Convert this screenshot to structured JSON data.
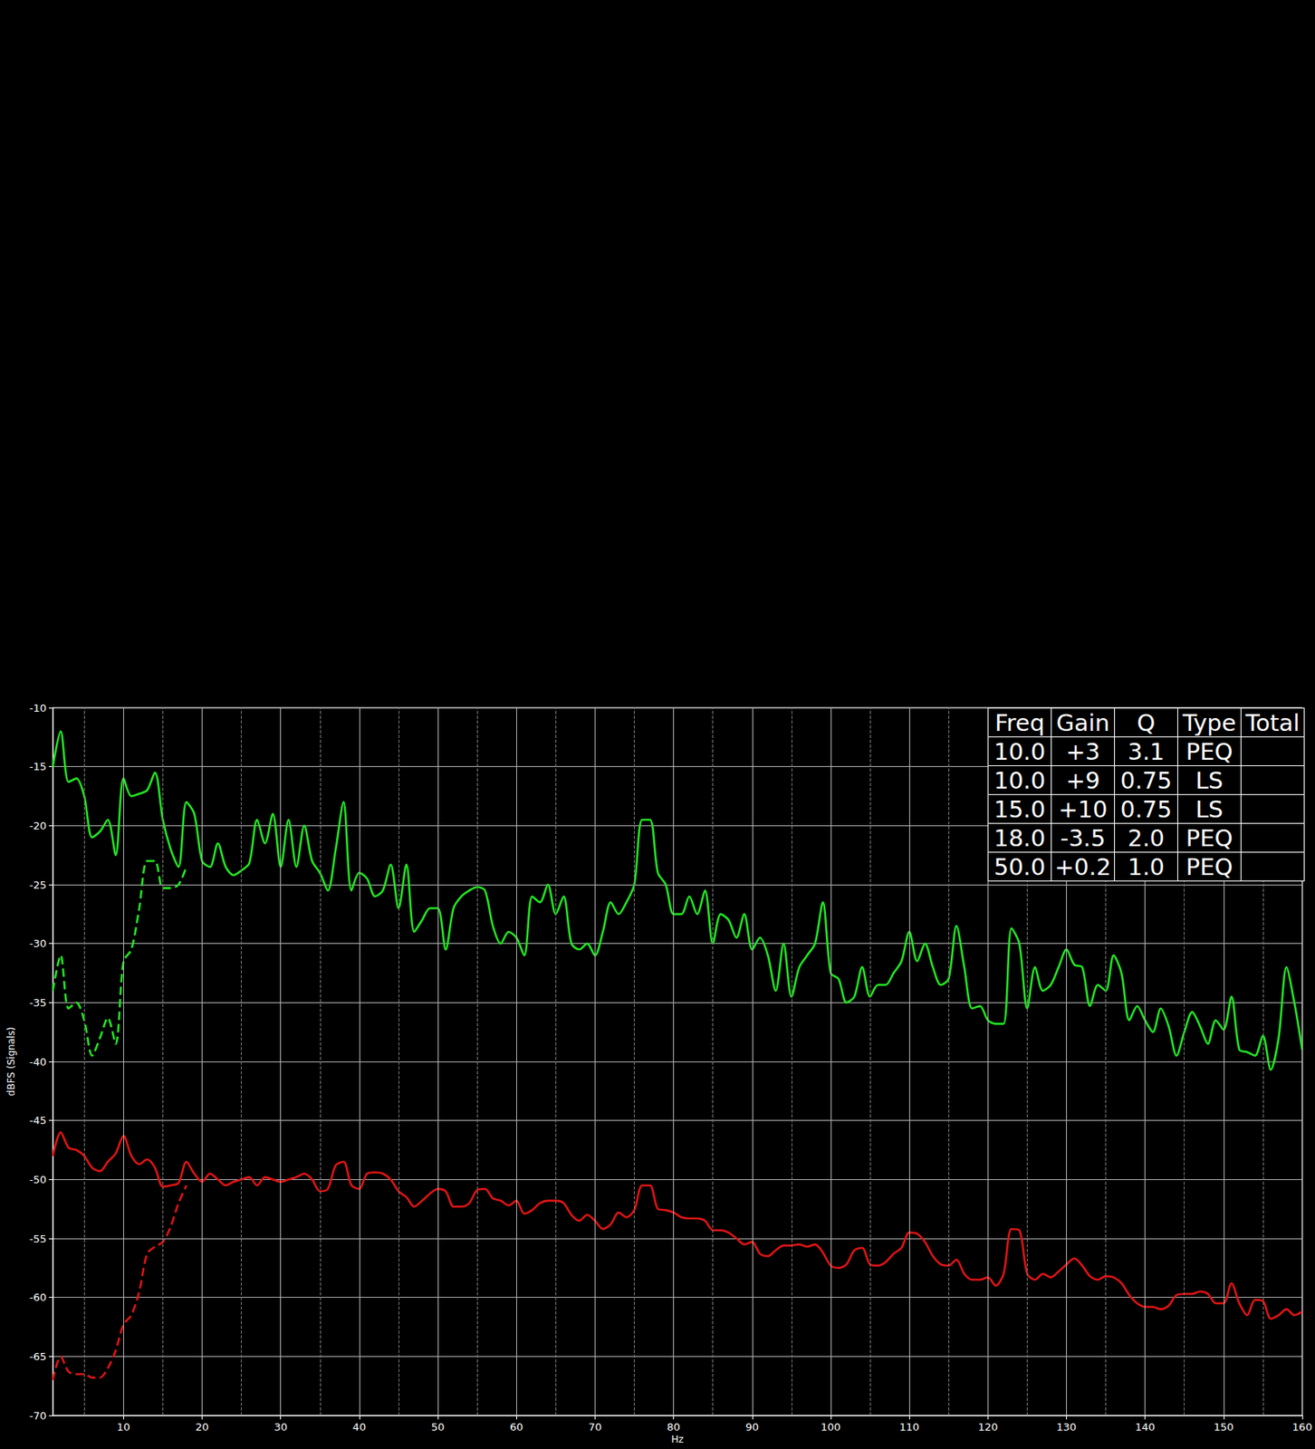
{
  "chart_data": {
    "type": "line",
    "x_label": "Hz",
    "y_label": "dBFS (Signals)",
    "xlim": [
      1,
      160
    ],
    "xticks": [
      10,
      20,
      30,
      40,
      50,
      60,
      70,
      80,
      90,
      100,
      110,
      120,
      130,
      140,
      150,
      160
    ],
    "ylim": [
      -70,
      -10
    ],
    "yticks": [
      -70,
      -65,
      -60,
      -55,
      -50,
      -45,
      -40,
      -35,
      -30,
      -25,
      -20,
      -15,
      -10
    ],
    "grid": true,
    "x": [
      1,
      2,
      3,
      4,
      5,
      6,
      7,
      8,
      9,
      10,
      11,
      12,
      13,
      14,
      15,
      16,
      17,
      18,
      19,
      20,
      21,
      22,
      23,
      24,
      25,
      26,
      27,
      28,
      29,
      30,
      31,
      32,
      33,
      34,
      35,
      36,
      37,
      38,
      39,
      40,
      41,
      42,
      43,
      44,
      45,
      46,
      47,
      48,
      49,
      50,
      51,
      52,
      53,
      54,
      55,
      56,
      57,
      58,
      59,
      60,
      61,
      62,
      63,
      64,
      65,
      66,
      67,
      68,
      69,
      70,
      71,
      72,
      73,
      74,
      75,
      76,
      77,
      78,
      79,
      80,
      81,
      82,
      83,
      84,
      85,
      86,
      87,
      88,
      89,
      90,
      91,
      92,
      93,
      94,
      95,
      96,
      97,
      98,
      99,
      100,
      101,
      102,
      103,
      104,
      105,
      106,
      107,
      108,
      109,
      110,
      111,
      112,
      113,
      114,
      115,
      116,
      117,
      118,
      119,
      120,
      121,
      122,
      123,
      124,
      125,
      126,
      127,
      128,
      129,
      130,
      131,
      132,
      133,
      134,
      135,
      136,
      137,
      138,
      139,
      140,
      141,
      142,
      143,
      144,
      145,
      146,
      147,
      148,
      149,
      150,
      151,
      152,
      153,
      154,
      155,
      156,
      157,
      158,
      159,
      160
    ],
    "series": [
      {
        "color": "#22e622",
        "line_style": "solid",
        "values": [
          -15,
          -12,
          -16.3,
          -16,
          -17.5,
          -21,
          -20.5,
          -19.5,
          -22.5,
          -16,
          -17.5,
          -17.3,
          -17,
          -15.5,
          -19.5,
          -22,
          -23.5,
          -18,
          -19,
          -23,
          -23.5,
          -21.5,
          -23.5,
          -24.2,
          -23.8,
          -23.2,
          -19.5,
          -21.5,
          -19,
          -23.5,
          -19.5,
          -23.5,
          -20,
          -23,
          -24,
          -25.5,
          -22,
          -18,
          -25.5,
          -24,
          -24.5,
          -26,
          -25.5,
          -23.3,
          -27,
          -23.3,
          -29,
          -28,
          -27,
          -27,
          -30.5,
          -27,
          -26,
          -25.5,
          -25.2,
          -25.5,
          -28.5,
          -30,
          -29,
          -29.5,
          -31,
          -26,
          -26.5,
          -25,
          -27.5,
          -26,
          -30,
          -30.5,
          -30,
          -31,
          -29,
          -26.5,
          -27.5,
          -26.5,
          -25,
          -19.5,
          -19.5,
          -24,
          -25,
          -27.5,
          -27.5,
          -26,
          -27.5,
          -25.5,
          -30,
          -27.5,
          -28,
          -29.5,
          -27.5,
          -30.5,
          -29.5,
          -31,
          -34,
          -30,
          -34.5,
          -32,
          -31,
          -30,
          -26.5,
          -32.5,
          -33,
          -35,
          -34.5,
          -32,
          -34.5,
          -33.5,
          -33.5,
          -32.5,
          -31.5,
          -29,
          -31.5,
          -30,
          -32,
          -33.5,
          -33,
          -28.5,
          -32,
          -35.5,
          -35.3,
          -36.5,
          -36.8,
          -36.8,
          -28.7,
          -30,
          -35.5,
          -32,
          -34,
          -33.5,
          -32,
          -30.5,
          -31.8,
          -32,
          -35.3,
          -33.5,
          -34,
          -31,
          -32.5,
          -36.5,
          -35.3,
          -36.5,
          -37.5,
          -35.5,
          -37,
          -39.5,
          -37.5,
          -35.8,
          -37,
          -38.5,
          -36.5,
          -37.3,
          -34.5,
          -39,
          -39.2,
          -39.5,
          -37.8,
          -40.7,
          -38,
          -32,
          -35,
          -39
        ]
      },
      {
        "color": "#22e622",
        "line_style": "dashed",
        "x": [
          1,
          2,
          3,
          4,
          5,
          6,
          7,
          8,
          9,
          10,
          11,
          12,
          13,
          14,
          15,
          16,
          17,
          18
        ],
        "values": [
          -34,
          -31,
          -35.5,
          -35,
          -36.5,
          -39.5,
          -38,
          -36.3,
          -38.5,
          -31.5,
          -30.5,
          -27,
          -23,
          -23,
          -25.3,
          -25.3,
          -25,
          -23.5
        ]
      },
      {
        "color": "#e01414",
        "line_style": "solid",
        "values": [
          -48,
          -46,
          -47.3,
          -47.5,
          -48,
          -49,
          -49.3,
          -48.5,
          -47.8,
          -46.3,
          -48,
          -48.7,
          -48.3,
          -49,
          -50.6,
          -50.5,
          -50.3,
          -48.5,
          -49.5,
          -50.2,
          -49.5,
          -50,
          -50.5,
          -50.2,
          -50,
          -49.8,
          -50.5,
          -49.8,
          -50,
          -50.2,
          -50,
          -49.8,
          -49.5,
          -50,
          -51,
          -50.8,
          -48.8,
          -48.5,
          -50.5,
          -50.8,
          -49.5,
          -49.4,
          -49.5,
          -50,
          -51,
          -51.5,
          -52.3,
          -51.8,
          -51.2,
          -50.8,
          -51,
          -52.3,
          -52.3,
          -52,
          -50.9,
          -50.8,
          -51.6,
          -51.8,
          -52.2,
          -51.8,
          -52.9,
          -52.6,
          -52,
          -51.8,
          -51.8,
          -52,
          -53,
          -53.5,
          -53,
          -53.5,
          -54.2,
          -53.8,
          -52.8,
          -53.2,
          -52.6,
          -50.5,
          -50.5,
          -52.5,
          -52.6,
          -52.8,
          -53.2,
          -53.3,
          -53.3,
          -53.5,
          -54.3,
          -54.3,
          -54.5,
          -55,
          -55.5,
          -55.3,
          -56.3,
          -56.5,
          -56,
          -55.6,
          -55.6,
          -55.5,
          -55.7,
          -55.5,
          -56.2,
          -57.3,
          -57.5,
          -57.2,
          -56,
          -55.8,
          -57.2,
          -57.3,
          -57,
          -56.3,
          -55.8,
          -54.5,
          -54.6,
          -55.3,
          -56.5,
          -57.2,
          -57.3,
          -56.8,
          -58,
          -58.5,
          -58.5,
          -58.3,
          -59,
          -58,
          -54.2,
          -54.3,
          -58,
          -58.5,
          -58,
          -58.3,
          -57.8,
          -57.2,
          -56.7,
          -57.3,
          -58.2,
          -58.5,
          -58.2,
          -58.3,
          -58.8,
          -59.8,
          -60.5,
          -60.8,
          -60.8,
          -61,
          -60.7,
          -59.8,
          -59.7,
          -59.7,
          -59.5,
          -59.7,
          -60.5,
          -60.5,
          -58.8,
          -60.5,
          -61.5,
          -60.2,
          -60.3,
          -61.8,
          -61.5,
          -61,
          -61.5,
          -61.2
        ]
      },
      {
        "color": "#e01414",
        "line_style": "dashed",
        "x": [
          1,
          2,
          3,
          4,
          5,
          6,
          7,
          8,
          9,
          10,
          11,
          12,
          13,
          14,
          15,
          16,
          17,
          18
        ],
        "values": [
          -67,
          -65,
          -66.3,
          -66.5,
          -66.5,
          -66.8,
          -66.8,
          -66,
          -64.5,
          -62.3,
          -61.5,
          -59.5,
          -56.3,
          -55.7,
          -55.3,
          -54,
          -52,
          -50.5
        ]
      }
    ]
  },
  "table": {
    "header": [
      "Freq",
      "Gain",
      "Q",
      "Type",
      "Total"
    ],
    "rows": [
      [
        "10.0",
        "+3",
        "3.1",
        "PEQ"
      ],
      [
        "10.0",
        "+9",
        "0.75",
        "LS"
      ],
      [
        "15.0",
        "+10",
        "0.75",
        "LS"
      ],
      [
        "18.0",
        "-3.5",
        "2.0",
        "PEQ"
      ],
      [
        "50.0",
        "+0.2",
        "1.0",
        "PEQ"
      ]
    ]
  }
}
